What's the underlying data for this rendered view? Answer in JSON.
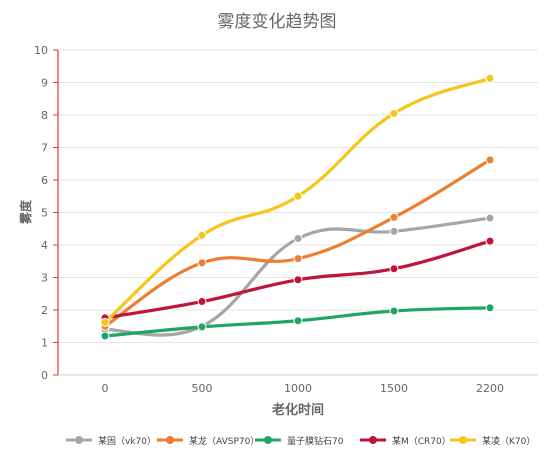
{
  "chart_data": {
    "type": "line",
    "title": "雾度变化趋势图",
    "xlabel": "老化时间",
    "ylabel": "雾度",
    "categories": [
      "0",
      "500",
      "1000",
      "1500",
      "2200"
    ],
    "ylim": [
      0,
      10
    ],
    "yticks": [
      "0",
      "1",
      "2",
      "3",
      "4",
      "5",
      "6",
      "7",
      "8",
      "9",
      "10"
    ],
    "grid": true,
    "legend_position": "bottom",
    "series": [
      {
        "name": "某固（vk70）",
        "color": "#a6a6a6",
        "values": [
          1.4,
          1.5,
          4.2,
          4.42,
          4.83
        ]
      },
      {
        "name": "某龙（AVSP70）",
        "color": "#ed7d31",
        "values": [
          1.5,
          3.45,
          3.58,
          4.85,
          6.62
        ]
      },
      {
        "name": "量子膜钻石70",
        "color": "#21a567",
        "values": [
          1.2,
          1.48,
          1.67,
          1.97,
          2.07
        ]
      },
      {
        "name": "某M（CR70）",
        "color": "#c0143c",
        "values": [
          1.76,
          2.26,
          2.93,
          3.27,
          4.12
        ]
      },
      {
        "name": "某凌（K70）",
        "color": "#f5c518",
        "values": [
          1.62,
          4.3,
          5.5,
          8.05,
          9.13
        ]
      }
    ]
  }
}
